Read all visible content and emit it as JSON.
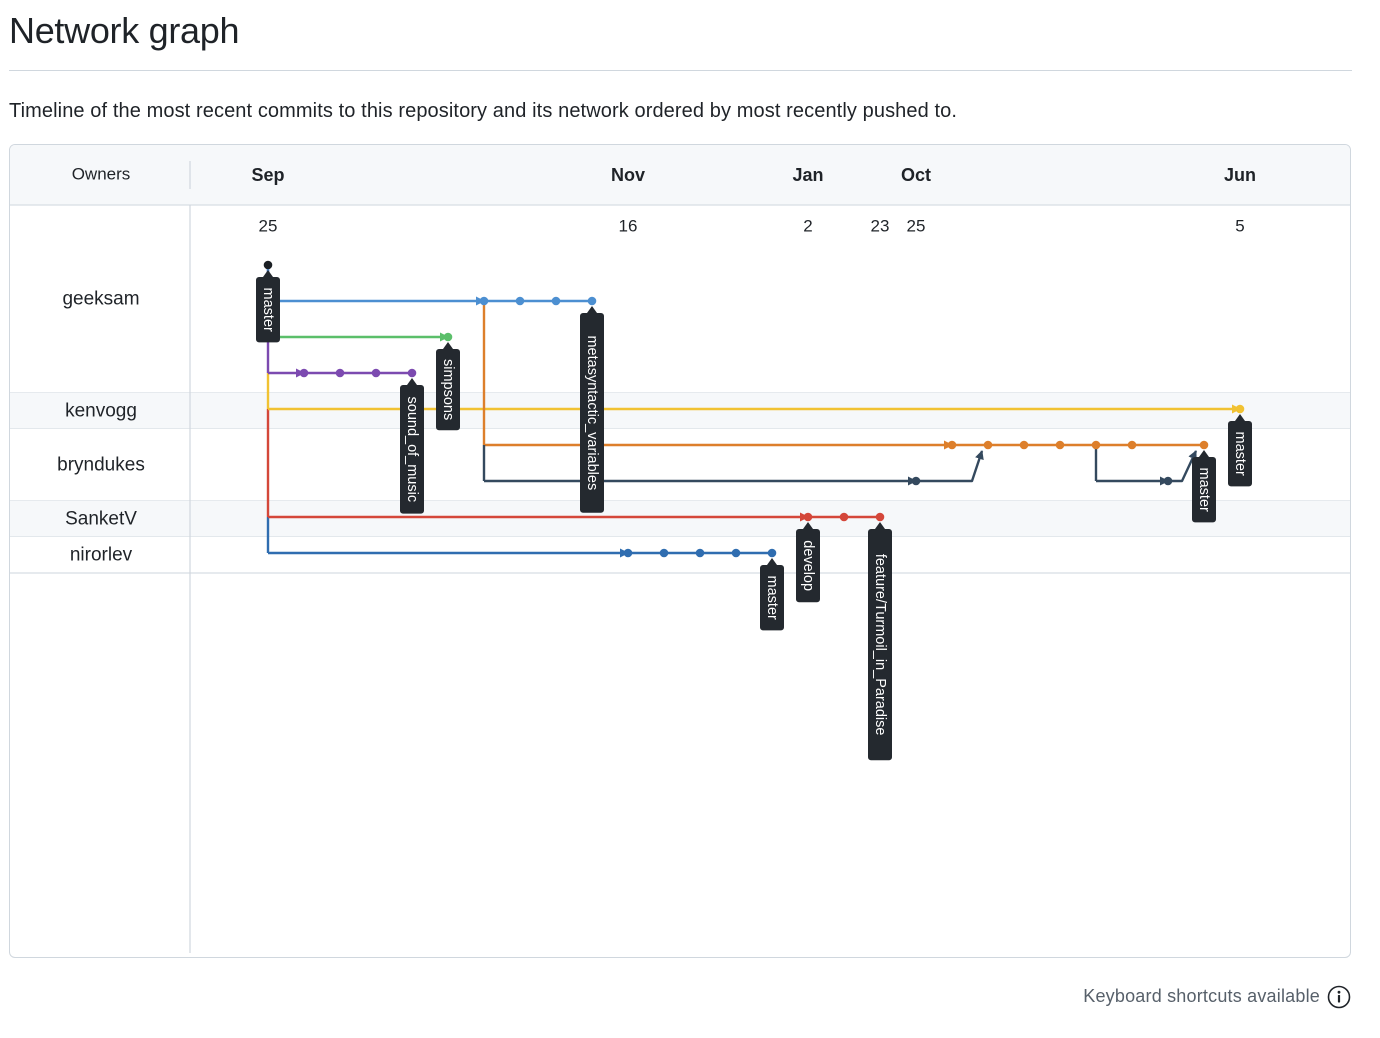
{
  "page": {
    "title": "Network graph",
    "description": "Timeline of the most recent commits to this repository and its network ordered by most recently pushed to."
  },
  "graph": {
    "owners_header": "Owners",
    "owners": [
      "geeksam",
      "kenvogg",
      "bryndukes",
      "SanketV",
      "nirorlev"
    ],
    "months": [
      "Sep",
      "Nov",
      "Jan",
      "Oct",
      "Jun"
    ],
    "days": [
      "25",
      "16",
      "2",
      "23",
      "25",
      "5"
    ],
    "colors": {
      "black": "#1b1f24",
      "blue": "#4c8fd1",
      "green": "#5bbf6a",
      "purple": "#7c4ab0",
      "yellow": "#f1c232",
      "orange": "#dd7f2b",
      "slate": "#34495e",
      "red": "#d4473a",
      "navy": "#2f6db0",
      "label_bg": "#24292f",
      "label_text": "#ffffff",
      "grid": "#d8dee4",
      "header_bg": "#f6f8fa"
    },
    "branch_labels": [
      "master",
      "simpsons",
      "sound_of_music",
      "metasyntactic_variables",
      "master",
      "master",
      "master",
      "develop",
      "feature/Turmoil_in_Paradise"
    ]
  },
  "footer": {
    "keyboard_shortcuts": "Keyboard shortcuts available",
    "icon": "info-icon"
  }
}
